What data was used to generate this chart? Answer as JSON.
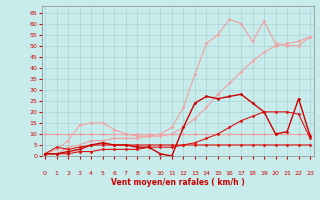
{
  "bg_color": "#c8ecec",
  "grid_color": "#aad4d4",
  "xlabel": "Vent moyen/en rafales ( km/h )",
  "xlim": [
    -0.3,
    23.3
  ],
  "ylim": [
    0,
    68
  ],
  "yticks": [
    0,
    5,
    10,
    15,
    20,
    25,
    30,
    35,
    40,
    45,
    50,
    55,
    60,
    65
  ],
  "xticks": [
    0,
    1,
    2,
    3,
    4,
    5,
    6,
    7,
    8,
    9,
    10,
    11,
    12,
    13,
    14,
    15,
    16,
    17,
    18,
    19,
    20,
    21,
    22,
    23
  ],
  "series": [
    {
      "x": [
        0,
        1,
        2,
        3,
        4,
        5,
        6,
        7,
        8,
        9,
        10,
        11,
        12,
        13,
        14,
        15,
        16,
        17,
        18,
        19,
        20,
        21,
        22,
        23
      ],
      "y": [
        10,
        10,
        10,
        10,
        10,
        10,
        10,
        10,
        10,
        10,
        10,
        10,
        10,
        10,
        10,
        10,
        10,
        10,
        10,
        10,
        10,
        10,
        10,
        10
      ],
      "color": "#f0a0a0",
      "lw": 0.8
    },
    {
      "x": [
        0,
        1,
        2,
        3,
        4,
        5,
        6,
        7,
        8,
        9,
        10,
        11,
        12,
        13,
        14,
        15,
        16,
        17,
        18,
        19,
        20,
        21,
        22,
        23
      ],
      "y": [
        1,
        1,
        4,
        5,
        7,
        7,
        8,
        8,
        8,
        9,
        9,
        10,
        13,
        17,
        22,
        28,
        33,
        38,
        43,
        47,
        50,
        51,
        52,
        54
      ],
      "color": "#f0a0a0",
      "lw": 0.8
    },
    {
      "x": [
        0,
        1,
        2,
        3,
        4,
        5,
        6,
        7,
        8,
        9,
        10,
        11,
        12,
        13,
        14,
        15,
        16,
        17,
        18,
        19,
        20,
        21,
        22,
        23
      ],
      "y": [
        1,
        3,
        7,
        14,
        15,
        15,
        12,
        10,
        9,
        9,
        10,
        13,
        22,
        37,
        51,
        55,
        62,
        60,
        52,
        61,
        51,
        50,
        50,
        54
      ],
      "color": "#f0a0a0",
      "lw": 0.8
    },
    {
      "x": [
        0,
        1,
        2,
        3,
        4,
        5,
        6,
        7,
        8,
        9,
        10,
        11,
        12,
        13,
        14,
        15,
        16,
        17,
        18,
        19,
        20,
        21,
        22,
        23
      ],
      "y": [
        1,
        4,
        3,
        4,
        5,
        5,
        5,
        5,
        5,
        5,
        5,
        5,
        5,
        5,
        5,
        5,
        5,
        5,
        5,
        5,
        5,
        5,
        5,
        5
      ],
      "color": "#dd1111",
      "lw": 0.8
    },
    {
      "x": [
        0,
        1,
        2,
        3,
        4,
        5,
        6,
        7,
        8,
        9,
        10,
        11,
        12,
        13,
        14,
        15,
        16,
        17,
        18,
        19,
        20,
        21,
        22,
        23
      ],
      "y": [
        1,
        1,
        1,
        2,
        2,
        3,
        3,
        3,
        3,
        4,
        4,
        4,
        5,
        6,
        8,
        10,
        13,
        16,
        18,
        20,
        20,
        20,
        19,
        8
      ],
      "color": "#dd1111",
      "lw": 0.8
    },
    {
      "x": [
        0,
        1,
        2,
        3,
        4,
        5,
        6,
        7,
        8,
        9,
        10,
        11,
        12,
        13,
        14,
        15,
        16,
        17,
        18,
        19,
        20,
        21,
        22,
        23
      ],
      "y": [
        1,
        1,
        2,
        3,
        5,
        6,
        5,
        5,
        4,
        4,
        1,
        0,
        13,
        24,
        27,
        26,
        27,
        28,
        24,
        20,
        10,
        11,
        26,
        9
      ],
      "color": "#cc0000",
      "lw": 1.0
    }
  ],
  "wind_dirs": [
    "↘",
    "↗",
    "↓",
    "↙",
    "↖",
    "↓",
    "↓",
    "↓",
    "↖",
    "↗",
    "←",
    "↑",
    "↖",
    "↑",
    "↑",
    "↖",
    "↖",
    "↑",
    "↖",
    "↑",
    "↖",
    "↑",
    "↑",
    "?"
  ],
  "xlabel_color": "#cc0000",
  "tick_color": "#cc0000",
  "xlabel_fontsize": 5.5,
  "tick_fontsize": 4.5
}
